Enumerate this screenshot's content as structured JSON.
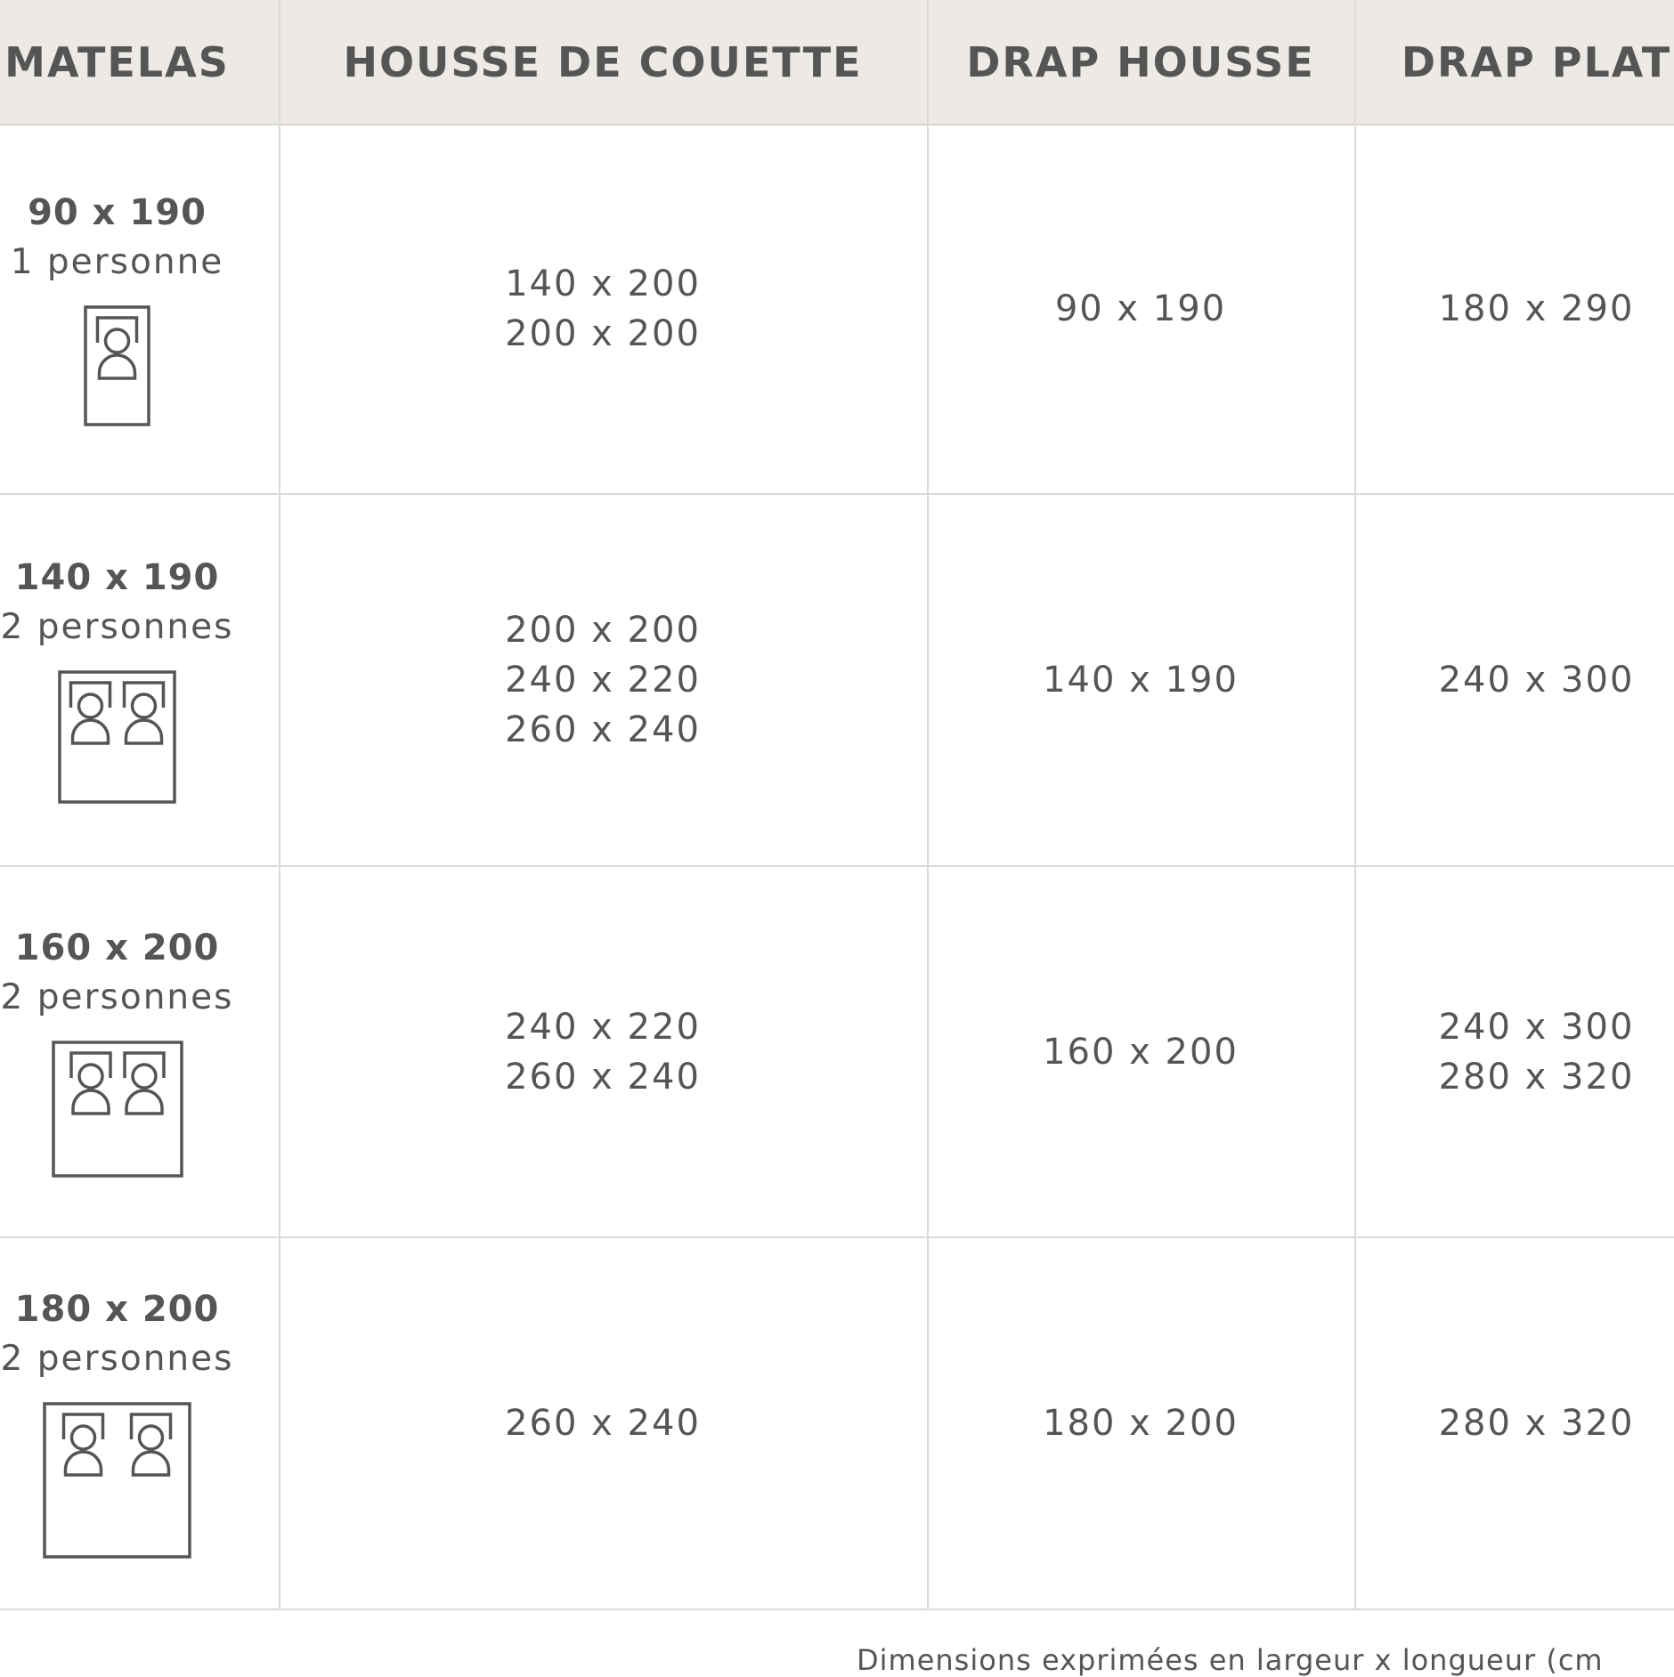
{
  "headers": [
    "MATELAS",
    "HOUSSE DE COUETTE",
    "DRAP HOUSSE",
    "DRAP PLAT"
  ],
  "rows": [
    {
      "matelas": "90 x 190",
      "personnes": "1 personne",
      "icon": "single-bed-icon",
      "housse": [
        "140 x 200",
        "200 x 200"
      ],
      "drap_housse": [
        "90 x 190"
      ],
      "drap_plat": [
        "180 x 290"
      ]
    },
    {
      "matelas": "140 x 190",
      "personnes": "2 personnes",
      "icon": "double-bed-icon",
      "housse": [
        "200 x 200",
        "240 x 220",
        "260 x 240"
      ],
      "drap_housse": [
        "140 x 190"
      ],
      "drap_plat": [
        "240 x 300"
      ]
    },
    {
      "matelas": "160 x 200",
      "personnes": "2 personnes",
      "icon": "queen-bed-icon",
      "housse": [
        "240 x 220",
        "260 x 240"
      ],
      "drap_housse": [
        "160 x 200"
      ],
      "drap_plat": [
        "240 x 300",
        "280 x 320"
      ]
    },
    {
      "matelas": "180 x 200",
      "personnes": "2 personnes",
      "icon": "king-bed-icon",
      "housse": [
        "260 x 240"
      ],
      "drap_housse": [
        "180 x 200"
      ],
      "drap_plat": [
        "280 x 320"
      ]
    }
  ],
  "footer": "Dimensions exprimées en largeur x longueur (cm",
  "colors": {
    "header_bg": "#edeae6",
    "text": "#555555",
    "border": "#dcdad7"
  }
}
